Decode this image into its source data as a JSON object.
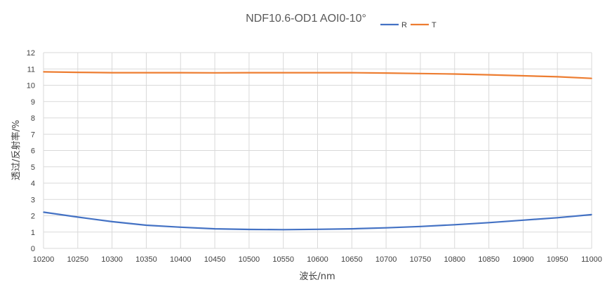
{
  "chart_data": {
    "type": "line",
    "title": "NDF10.6-OD1 AOI0-10°",
    "xlabel": "波长/nm",
    "ylabel": "透过/反射率/%",
    "xlim": [
      10200,
      11000
    ],
    "ylim": [
      0,
      12
    ],
    "x_ticks": [
      10200,
      10250,
      10300,
      10350,
      10400,
      10450,
      10500,
      10550,
      10600,
      10650,
      10700,
      10750,
      10800,
      10850,
      10900,
      10950,
      11000
    ],
    "y_ticks": [
      0,
      1,
      2,
      3,
      4,
      5,
      6,
      7,
      8,
      9,
      10,
      11,
      12
    ],
    "grid": true,
    "legend_position": "top",
    "x": [
      10200,
      10250,
      10300,
      10350,
      10400,
      10450,
      10500,
      10550,
      10600,
      10650,
      10700,
      10750,
      10800,
      10850,
      10900,
      10950,
      11000
    ],
    "series": [
      {
        "name": "R",
        "color": "#4472C4",
        "values": [
          2.22,
          1.92,
          1.64,
          1.42,
          1.3,
          1.2,
          1.16,
          1.15,
          1.17,
          1.2,
          1.26,
          1.34,
          1.45,
          1.58,
          1.73,
          1.88,
          2.07
        ]
      },
      {
        "name": "T",
        "color": "#ED7D31",
        "values": [
          10.82,
          10.79,
          10.77,
          10.77,
          10.77,
          10.76,
          10.77,
          10.77,
          10.77,
          10.77,
          10.75,
          10.72,
          10.69,
          10.64,
          10.58,
          10.52,
          10.42
        ]
      }
    ],
    "gridline_color": "#D9D9D9"
  }
}
